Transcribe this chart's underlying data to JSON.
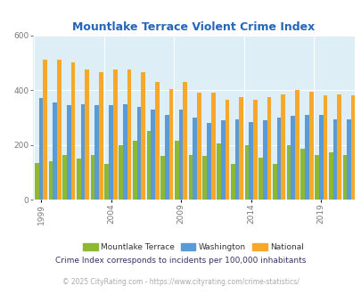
{
  "title": "Mountlake Terrace Violent Crime Index",
  "title_color": "#2266bb",
  "subtitle": "Crime Index corresponds to incidents per 100,000 inhabitants",
  "footer": "© 2025 CityRating.com - https://www.cityrating.com/crime-statistics/",
  "years": [
    1999,
    2000,
    2001,
    2002,
    2003,
    2004,
    2005,
    2006,
    2007,
    2008,
    2009,
    2010,
    2011,
    2012,
    2013,
    2014,
    2015,
    2016,
    2017,
    2018,
    2019,
    2020,
    2021
  ],
  "mountlake_terrace": [
    135,
    140,
    165,
    150,
    165,
    130,
    200,
    215,
    250,
    160,
    215,
    165,
    160,
    205,
    130,
    200,
    155,
    130,
    200,
    185,
    165,
    175,
    165
  ],
  "washington": [
    370,
    355,
    345,
    350,
    345,
    345,
    350,
    340,
    330,
    310,
    330,
    300,
    280,
    290,
    295,
    285,
    290,
    300,
    305,
    310,
    310,
    295,
    295
  ],
  "national": [
    510,
    510,
    500,
    475,
    465,
    475,
    475,
    465,
    430,
    405,
    430,
    390,
    390,
    365,
    375,
    365,
    375,
    385,
    400,
    395,
    380,
    385,
    380
  ],
  "color_green": "#8cb832",
  "color_blue": "#5b9bd5",
  "color_orange": "#f5a82a",
  "bg_color": "#deeef6",
  "ylim_max": 600,
  "ytick_labels": [
    0,
    200,
    400,
    600
  ],
  "tick_years": [
    1999,
    2004,
    2009,
    2014,
    2019
  ],
  "legend_labels": [
    "Mountlake Terrace",
    "Washington",
    "National"
  ]
}
